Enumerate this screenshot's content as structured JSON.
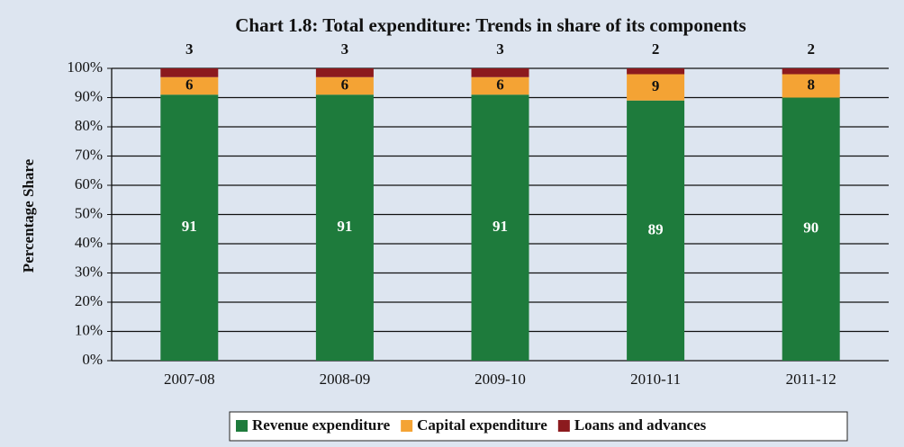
{
  "chart_data": {
    "type": "stacked_bar",
    "title": "Chart 1.8: Total expenditure: Trends in share of its components",
    "y_label": "Percentage  Share",
    "categories": [
      "2007-08",
      "2008-09",
      "2009-10",
      "2010-11",
      "2011-12"
    ],
    "series": [
      {
        "name": "Revenue expenditure",
        "color": "#1e7b3c",
        "values": [
          91,
          91,
          91,
          89,
          90
        ]
      },
      {
        "name": "Capital expenditure",
        "color": "#f4a334",
        "values": [
          6,
          6,
          6,
          9,
          8
        ]
      },
      {
        "name": "Loans and advances",
        "color": "#8c1a1e",
        "values": [
          3,
          3,
          3,
          2,
          2
        ]
      }
    ],
    "ylim": [
      0,
      100
    ],
    "yticks": [
      {
        "value": 0,
        "label": "0%"
      },
      {
        "value": 10,
        "label": "10%"
      },
      {
        "value": 20,
        "label": "20%"
      },
      {
        "value": 30,
        "label": "30%"
      },
      {
        "value": 40,
        "label": "40%"
      },
      {
        "value": 50,
        "label": "50%"
      },
      {
        "value": 60,
        "label": "60%"
      },
      {
        "value": 70,
        "label": "70%"
      },
      {
        "value": 80,
        "label": "80%"
      },
      {
        "value": 90,
        "label": "90%"
      },
      {
        "value": 100,
        "label": "100%"
      }
    ],
    "grid": true,
    "legend": "bottom"
  }
}
